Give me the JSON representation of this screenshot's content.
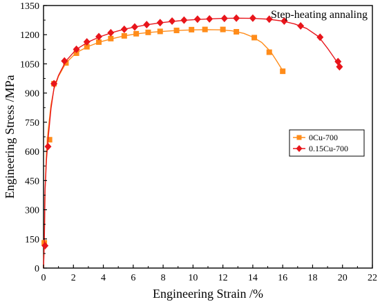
{
  "chart_data": {
    "type": "line",
    "title": "Step-heating annaling",
    "xlabel": "Engineering Strain /%",
    "ylabel": "Engineering Stress /MPa",
    "xlim": [
      0,
      22
    ],
    "ylim": [
      0,
      1350
    ],
    "xticks": [
      "0",
      "2",
      "4",
      "6",
      "8",
      "10",
      "12",
      "14",
      "16",
      "18",
      "20",
      "22"
    ],
    "yticks": [
      "0",
      "150",
      "300",
      "450",
      "600",
      "750",
      "900",
      "1050",
      "1200",
      "1350"
    ],
    "grid": false,
    "legend_position": "center-right",
    "series": [
      {
        "name": "0Cu-700",
        "color": "#ff8c1a",
        "marker": "square",
        "curve": [
          [
            0,
            0
          ],
          [
            0.05,
            150
          ],
          [
            0.1,
            400
          ],
          [
            0.2,
            600
          ],
          [
            0.3,
            700
          ],
          [
            0.5,
            840
          ],
          [
            0.7,
            920
          ],
          [
            1.0,
            985
          ],
          [
            1.5,
            1055
          ],
          [
            2.2,
            1108
          ],
          [
            3.0,
            1140
          ],
          [
            3.8,
            1163
          ],
          [
            4.6,
            1180
          ],
          [
            5.4,
            1194
          ],
          [
            6.2,
            1204
          ],
          [
            7.0,
            1211
          ],
          [
            7.8,
            1216
          ],
          [
            8.6,
            1220
          ],
          [
            9.4,
            1223
          ],
          [
            10.2,
            1225
          ],
          [
            11.0,
            1226
          ],
          [
            11.8,
            1225
          ],
          [
            12.6,
            1220
          ],
          [
            13.4,
            1207
          ],
          [
            14.0,
            1188
          ],
          [
            14.6,
            1160
          ],
          [
            15.2,
            1112
          ],
          [
            15.6,
            1065
          ],
          [
            16.0,
            1015
          ]
        ],
        "markers": [
          [
            0.05,
            130
          ],
          [
            0.4,
            660
          ],
          [
            0.7,
            948
          ],
          [
            1.5,
            1055
          ],
          [
            2.2,
            1105
          ],
          [
            2.9,
            1138
          ],
          [
            3.7,
            1162
          ],
          [
            4.5,
            1180
          ],
          [
            5.4,
            1194
          ],
          [
            6.2,
            1205
          ],
          [
            7.0,
            1212
          ],
          [
            7.8,
            1217
          ],
          [
            8.9,
            1222
          ],
          [
            9.9,
            1226
          ],
          [
            10.8,
            1227
          ],
          [
            12.0,
            1227
          ],
          [
            12.9,
            1215
          ],
          [
            14.1,
            1185
          ],
          [
            15.1,
            1110
          ],
          [
            16.0,
            1012
          ]
        ]
      },
      {
        "name": "0.15Cu-700",
        "color": "#e8151b",
        "marker": "diamond",
        "curve": [
          [
            0,
            0
          ],
          [
            0.05,
            120
          ],
          [
            0.1,
            400
          ],
          [
            0.2,
            560
          ],
          [
            0.3,
            660
          ],
          [
            0.5,
            820
          ],
          [
            0.7,
            925
          ],
          [
            1.0,
            990
          ],
          [
            1.5,
            1065
          ],
          [
            2.2,
            1125
          ],
          [
            3.0,
            1163
          ],
          [
            3.8,
            1190
          ],
          [
            4.6,
            1211
          ],
          [
            5.4,
            1228
          ],
          [
            6.2,
            1241
          ],
          [
            7.0,
            1252
          ],
          [
            7.8,
            1261
          ],
          [
            8.6,
            1268
          ],
          [
            9.4,
            1274
          ],
          [
            10.2,
            1278
          ],
          [
            11.0,
            1281
          ],
          [
            12.0,
            1284
          ],
          [
            13.0,
            1285
          ],
          [
            14.0,
            1284
          ],
          [
            15.0,
            1280
          ],
          [
            16.0,
            1270
          ],
          [
            16.8,
            1255
          ],
          [
            17.6,
            1232
          ],
          [
            18.4,
            1190
          ],
          [
            19.0,
            1130
          ],
          [
            19.5,
            1075
          ],
          [
            19.8,
            1035
          ]
        ],
        "markers": [
          [
            0.1,
            115
          ],
          [
            0.3,
            625
          ],
          [
            0.7,
            948
          ],
          [
            1.4,
            1065
          ],
          [
            2.2,
            1125
          ],
          [
            2.9,
            1163
          ],
          [
            3.7,
            1190
          ],
          [
            4.5,
            1210
          ],
          [
            5.4,
            1228
          ],
          [
            6.1,
            1240
          ],
          [
            6.9,
            1252
          ],
          [
            7.8,
            1262
          ],
          [
            8.6,
            1270
          ],
          [
            9.4,
            1275
          ],
          [
            10.3,
            1280
          ],
          [
            11.1,
            1281
          ],
          [
            12.1,
            1284
          ],
          [
            12.9,
            1285
          ],
          [
            14.0,
            1285
          ],
          [
            15.1,
            1280
          ],
          [
            16.1,
            1270
          ],
          [
            17.2,
            1245
          ],
          [
            18.5,
            1187
          ],
          [
            19.7,
            1062
          ],
          [
            19.8,
            1035
          ]
        ]
      }
    ]
  }
}
